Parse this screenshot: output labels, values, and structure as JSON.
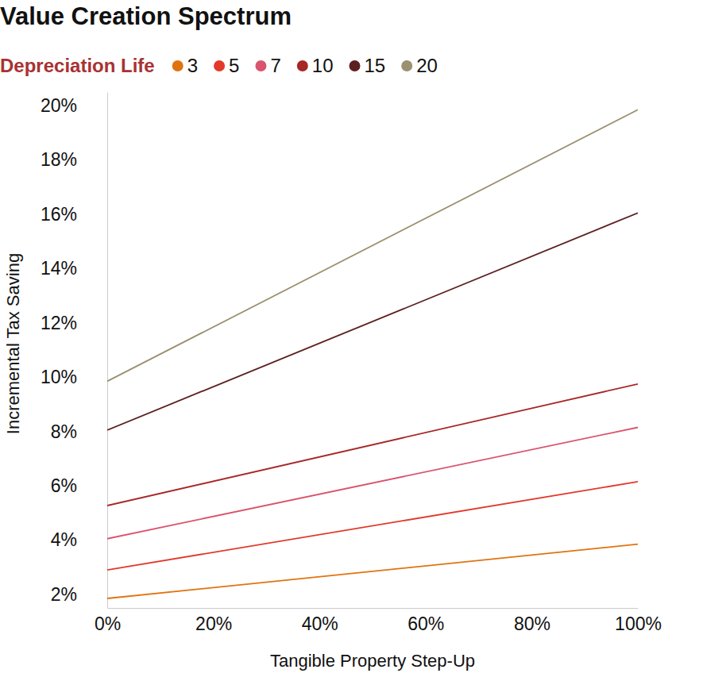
{
  "chart_data": {
    "type": "line",
    "title": "Value Creation Spectrum",
    "x_label": "Tangible Property Step-Up",
    "y_label": "Incremental Tax Saving",
    "legend": "top",
    "legend_title": "Depreciation Life",
    "grid": false,
    "x": [
      0,
      100
    ],
    "xlim": [
      0,
      100
    ],
    "xticks": [
      {
        "value": 0,
        "label": "0%"
      },
      {
        "value": 20,
        "label": "20%"
      },
      {
        "value": 40,
        "label": "40%"
      },
      {
        "value": 60,
        "label": "60%"
      },
      {
        "value": 80,
        "label": "80%"
      },
      {
        "value": 100,
        "label": "100%"
      }
    ],
    "ylim": [
      1.5,
      20.5
    ],
    "yticks": [
      {
        "value": 2,
        "label": "2%"
      },
      {
        "value": 4,
        "label": "4%"
      },
      {
        "value": 6,
        "label": "6%"
      },
      {
        "value": 8,
        "label": "8%"
      },
      {
        "value": 10,
        "label": "10%"
      },
      {
        "value": 12,
        "label": "12%"
      },
      {
        "value": 14,
        "label": "14%"
      },
      {
        "value": 16,
        "label": "16%"
      },
      {
        "value": 18,
        "label": "18%"
      },
      {
        "value": 20,
        "label": "20%"
      }
    ],
    "series": [
      {
        "name": "3",
        "color": "#e0730f",
        "values": [
          1.85,
          3.85
        ]
      },
      {
        "name": "5",
        "color": "#e2392b",
        "values": [
          2.9,
          6.15
        ]
      },
      {
        "name": "7",
        "color": "#d9546d",
        "values": [
          4.05,
          8.15
        ]
      },
      {
        "name": "10",
        "color": "#a82626",
        "values": [
          5.27,
          9.75
        ]
      },
      {
        "name": "15",
        "color": "#5c2020",
        "values": [
          8.05,
          16.05
        ]
      },
      {
        "name": "20",
        "color": "#9b9170",
        "values": [
          9.85,
          19.85
        ]
      }
    ]
  }
}
